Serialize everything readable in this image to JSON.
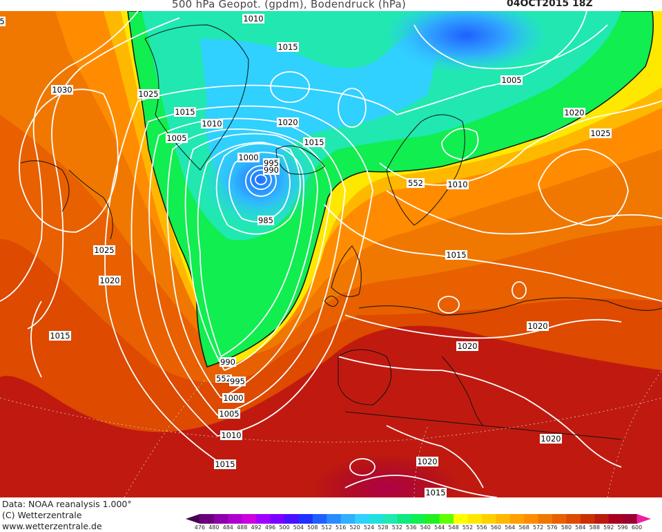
{
  "title": {
    "text": "500 hPa Geopot. (gpdm), Bodendruck (hPa)",
    "datetime": "04OCT2015 18Z"
  },
  "isobar_labels": [
    {
      "text": "1010"
    },
    {
      "text": "1015"
    },
    {
      "text": "1030"
    },
    {
      "text": "1025"
    },
    {
      "text": "1015"
    },
    {
      "text": "1010"
    },
    {
      "text": "1005"
    },
    {
      "text": "1020"
    },
    {
      "text": "1015"
    },
    {
      "text": "1000"
    },
    {
      "text": "995"
    },
    {
      "text": "990"
    },
    {
      "text": "985"
    },
    {
      "text": "552"
    },
    {
      "text": "1010"
    },
    {
      "text": "1005"
    },
    {
      "text": "1020"
    },
    {
      "text": "1025"
    },
    {
      "text": "1025"
    },
    {
      "text": "1020"
    },
    {
      "text": "1015"
    },
    {
      "text": "1015"
    },
    {
      "text": "990"
    },
    {
      "text": "552"
    },
    {
      "text": "995"
    },
    {
      "text": "1000"
    },
    {
      "text": "1005"
    },
    {
      "text": "1010"
    },
    {
      "text": "1015"
    },
    {
      "text": "1020"
    },
    {
      "text": "1020"
    },
    {
      "text": "1020"
    },
    {
      "text": "1020"
    },
    {
      "text": "1015"
    },
    {
      "text": "5"
    }
  ],
  "footer": {
    "data_source": "Data: NOAA reanalysis 1.000°",
    "copyright": "(C) Wetterzentrale",
    "website": "www.wetterzentrale.de"
  },
  "color_scale": {
    "ticks": [
      "476",
      "480",
      "484",
      "488",
      "492",
      "496",
      "500",
      "504",
      "508",
      "512",
      "516",
      "520",
      "524",
      "528",
      "532",
      "536",
      "540",
      "544",
      "548",
      "552",
      "556",
      "560",
      "564",
      "568",
      "572",
      "576",
      "580",
      "584",
      "588",
      "592",
      "596",
      "600"
    ],
    "colors": [
      "#4a0050",
      "#6a007a",
      "#8f00a8",
      "#b000d0",
      "#cc00e0",
      "#a000ff",
      "#7a00ff",
      "#4a10ff",
      "#2030ff",
      "#2060ff",
      "#2a8cff",
      "#30b0ff",
      "#30d0ff",
      "#20e0e0",
      "#20e8b0",
      "#10e880",
      "#10ee50",
      "#20f020",
      "#60ff00",
      "#ffff00",
      "#ffe800",
      "#ffd000",
      "#ffb800",
      "#ffa000",
      "#ff8c00",
      "#f07800",
      "#e86000",
      "#dd4a00",
      "#cc3000",
      "#bb1a10",
      "#aa0020",
      "#990030",
      "#ee20a0"
    ]
  }
}
